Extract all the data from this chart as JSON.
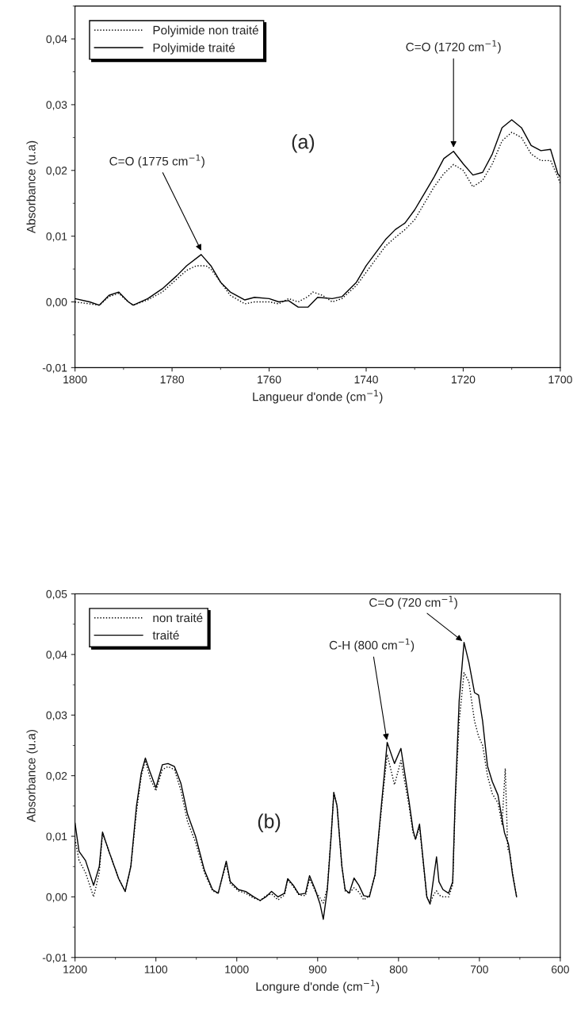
{
  "chart_data": [
    {
      "type": "line",
      "xlabel": "Langueur d'onde (cm$^{−1}$)",
      "ylabel": "Absorbance (u.a)",
      "xlim": [
        1800,
        1700
      ],
      "xticks": [
        1800,
        1780,
        1760,
        1740,
        1720,
        1700
      ],
      "ylim": [
        -0.01,
        0.045
      ],
      "yticks": [
        {
          "value": -0.01,
          "label": "-0,01"
        },
        {
          "value": 0.0,
          "label": "0,00"
        },
        {
          "value": 0.01,
          "label": "0,01"
        },
        {
          "value": 0.02,
          "label": "0,02"
        },
        {
          "value": 0.03,
          "label": "0,03"
        },
        {
          "value": 0.04,
          "label": "0,04"
        }
      ],
      "legend": "top left",
      "grid": false,
      "marker": "none",
      "series": [
        {
          "name": "Polyimide non traité",
          "color": "#000000",
          "line_style": "dotted",
          "x": [
            1800,
            1797,
            1795,
            1793,
            1791,
            1789,
            1788,
            1785,
            1782,
            1779,
            1777,
            1775,
            1773,
            1772,
            1770,
            1768,
            1765,
            1763,
            1760,
            1758,
            1756,
            1754,
            1752,
            1751,
            1749,
            1747,
            1745,
            1742,
            1740,
            1738,
            1736,
            1734,
            1732,
            1730,
            1728,
            1726,
            1724,
            1722,
            1720,
            1718,
            1716,
            1714,
            1712,
            1710,
            1708,
            1706,
            1704,
            1702,
            1700.5,
            1700
          ],
          "values": [
            0.0,
            -0.0003,
            -0.0005,
            0.0008,
            0.0013,
            0.0,
            -0.0005,
            0.0003,
            0.0015,
            0.0035,
            0.0048,
            0.0055,
            0.0055,
            0.005,
            0.003,
            0.001,
            -0.0003,
            0.0,
            0.0,
            -0.0003,
            0.0005,
            0.0,
            0.0008,
            0.0015,
            0.001,
            0.0,
            0.0005,
            0.0025,
            0.0045,
            0.0065,
            0.0085,
            0.0098,
            0.011,
            0.0125,
            0.015,
            0.0175,
            0.0195,
            0.0209,
            0.02,
            0.0175,
            0.0185,
            0.021,
            0.0245,
            0.0258,
            0.025,
            0.0225,
            0.0215,
            0.0215,
            0.019,
            0.018
          ]
        },
        {
          "name": "Polyimide traité",
          "color": "#000000",
          "line_style": "solid",
          "x": [
            1800,
            1797,
            1795,
            1793,
            1791,
            1789,
            1788,
            1785,
            1782,
            1779,
            1777,
            1774,
            1772,
            1770,
            1768,
            1765,
            1763,
            1760,
            1758,
            1756,
            1754,
            1752,
            1750,
            1747,
            1745,
            1742,
            1740,
            1738,
            1736,
            1734,
            1732,
            1730,
            1728,
            1726,
            1724,
            1722,
            1720,
            1718,
            1716,
            1714,
            1712,
            1710,
            1708,
            1706,
            1704,
            1702,
            1700.5,
            1700
          ],
          "values": [
            0.0005,
            0.0,
            -0.0005,
            0.001,
            0.0015,
            0.0,
            -0.0005,
            0.0005,
            0.002,
            0.004,
            0.0055,
            0.0072,
            0.0055,
            0.003,
            0.0015,
            0.0003,
            0.0007,
            0.0005,
            0.0,
            0.0002,
            -0.0008,
            -0.0008,
            0.0007,
            0.0005,
            0.0008,
            0.003,
            0.0055,
            0.0075,
            0.0095,
            0.011,
            0.012,
            0.014,
            0.0165,
            0.019,
            0.0218,
            0.0229,
            0.021,
            0.0193,
            0.0197,
            0.0225,
            0.0265,
            0.0277,
            0.0265,
            0.0238,
            0.023,
            0.0232,
            0.0195,
            0.019
          ]
        }
      ],
      "annotations": [
        {
          "text": "C=O (1775 cm$^{−1}$)",
          "x": 1774,
          "y": 0.0078
        },
        {
          "text": "C=O (1720 cm$^{−1}$)",
          "x": 1722,
          "y": 0.0235
        },
        "(a)"
      ]
    },
    {
      "type": "line",
      "xlabel": "Longure d'onde (cm$^{−1}$)",
      "ylabel": "Absorbance (u.a)",
      "xlim": [
        1200,
        600
      ],
      "xticks": [
        1200,
        1100,
        1000,
        900,
        800,
        700,
        600
      ],
      "ylim": [
        -0.01,
        0.05
      ],
      "yticks": [
        {
          "value": -0.01,
          "label": "-0,01"
        },
        {
          "value": 0.0,
          "label": "0,00"
        },
        {
          "value": 0.01,
          "label": "0,01"
        },
        {
          "value": 0.02,
          "label": "0,02"
        },
        {
          "value": 0.03,
          "label": "0,03"
        },
        {
          "value": 0.04,
          "label": "0,04"
        },
        {
          "value": 0.05,
          "label": "0,05"
        }
      ],
      "legend": "top left",
      "grid": false,
      "marker": "none",
      "series": [
        {
          "name": "non traité",
          "color": "#000000",
          "line_style": "dotted",
          "x": [
            1200,
            1195,
            1187,
            1177,
            1170,
            1166,
            1158,
            1146,
            1138,
            1131,
            1124,
            1118,
            1113,
            1107,
            1100,
            1092,
            1085,
            1077,
            1069,
            1061,
            1051,
            1040,
            1030,
            1023,
            1013,
            1008,
            998,
            989,
            979,
            971,
            964,
            957,
            949,
            941,
            937,
            930,
            923,
            915,
            910,
            903,
            897,
            893,
            888,
            883,
            880,
            876,
            870,
            866,
            861,
            855,
            849,
            843,
            836,
            829,
            823,
            818,
            814,
            805,
            797,
            787,
            782,
            779,
            774,
            765,
            761,
            756,
            753,
            750,
            745,
            738,
            733,
            730,
            725,
            719,
            713,
            706,
            701,
            696,
            690,
            684,
            677,
            672,
            668,
            665,
            662,
            659,
            654
          ],
          "values": [
            0.0095,
            0.006,
            0.004,
            0.0,
            0.004,
            0.0105,
            0.0075,
            0.003,
            0.0009,
            0.005,
            0.014,
            0.02,
            0.0225,
            0.0195,
            0.0175,
            0.021,
            0.0215,
            0.021,
            0.0175,
            0.0125,
            0.009,
            0.004,
            0.001,
            0.0006,
            0.0055,
            0.0022,
            0.001,
            0.0006,
            -0.0002,
            -0.0006,
            0.0002,
            0.0005,
            -0.0005,
            0.0003,
            0.0028,
            0.0017,
            0.0003,
            0.0002,
            0.003,
            0.001,
            -0.0002,
            -0.001,
            0.0015,
            0.0108,
            0.0172,
            0.015,
            0.005,
            0.001,
            0.0006,
            0.0015,
            0.0008,
            -0.0005,
            0.0002,
            0.0035,
            0.012,
            0.0185,
            0.0235,
            0.0185,
            0.0225,
            0.015,
            0.0105,
            0.0095,
            0.0115,
            0.0,
            -0.001,
            0.0005,
            0.001,
            0.0003,
            0.0,
            0.0,
            0.002,
            0.015,
            0.029,
            0.037,
            0.0355,
            0.029,
            0.0265,
            0.025,
            0.02,
            0.017,
            0.0155,
            0.012,
            0.0212,
            0.008,
            0.007,
            0.004,
            0.0
          ]
        },
        {
          "name": "traité",
          "color": "#000000",
          "line_style": "solid",
          "x": [
            1200,
            1195,
            1187,
            1177,
            1170,
            1166,
            1158,
            1146,
            1138,
            1131,
            1124,
            1118,
            1113,
            1107,
            1100,
            1092,
            1085,
            1077,
            1069,
            1061,
            1051,
            1040,
            1030,
            1023,
            1013,
            1008,
            998,
            989,
            979,
            971,
            964,
            957,
            949,
            941,
            937,
            930,
            923,
            915,
            910,
            903,
            897,
            893,
            888,
            883,
            880,
            876,
            870,
            866,
            861,
            855,
            849,
            843,
            836,
            829,
            823,
            818,
            814,
            805,
            797,
            787,
            782,
            779,
            774,
            765,
            761,
            756,
            753,
            750,
            745,
            738,
            733,
            730,
            725,
            719,
            713,
            706,
            701,
            696,
            690,
            684,
            677,
            669,
            664,
            659,
            654
          ],
          "values": [
            0.0122,
            0.0075,
            0.006,
            0.0019,
            0.005,
            0.0107,
            0.0075,
            0.003,
            0.0009,
            0.005,
            0.015,
            0.0205,
            0.0229,
            0.0205,
            0.018,
            0.0218,
            0.022,
            0.0215,
            0.0187,
            0.0137,
            0.01,
            0.0044,
            0.0012,
            0.0006,
            0.0059,
            0.0025,
            0.0012,
            0.0009,
            0.0,
            -0.0006,
            0.0,
            0.0009,
            0.0,
            0.0006,
            0.003,
            0.0019,
            0.0004,
            0.0006,
            0.0035,
            0.0012,
            -0.0012,
            -0.0037,
            0.0012,
            0.0106,
            0.0172,
            0.015,
            0.005,
            0.0012,
            0.0006,
            0.0031,
            0.0019,
            0.0002,
            0.0,
            0.0037,
            0.0125,
            0.0196,
            0.0255,
            0.022,
            0.0245,
            0.0158,
            0.011,
            0.0095,
            0.012,
            0.0,
            -0.0012,
            0.0037,
            0.0066,
            0.0025,
            0.0012,
            0.0006,
            0.0025,
            0.0158,
            0.0324,
            0.042,
            0.0387,
            0.0337,
            0.0333,
            0.029,
            0.0216,
            0.019,
            0.0168,
            0.0106,
            0.0087,
            0.0037,
            0.0
          ]
        }
      ],
      "annotations": [
        {
          "text": "C-H (800 cm$^{−1}$)",
          "x": 814,
          "y": 0.0255
        },
        {
          "text": "C=O (720 cm$^{−1}$)",
          "x": 719,
          "y": 0.042
        },
        "(b)"
      ]
    }
  ]
}
